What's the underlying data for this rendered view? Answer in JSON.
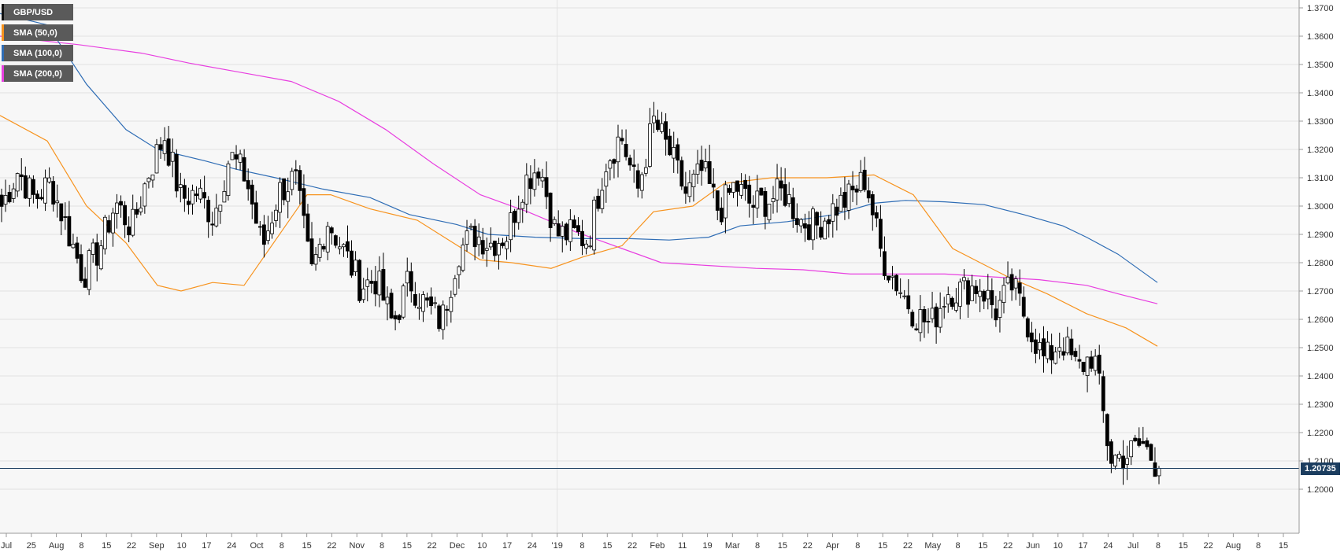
{
  "chart_data": {
    "type": "candlestick",
    "title": "",
    "ylim": [
      1.196,
      1.372
    ],
    "y_ticks": [
      "1.3700",
      "1.3600",
      "1.3500",
      "1.3400",
      "1.3300",
      "1.3200",
      "1.3100",
      "1.3000",
      "1.2900",
      "1.2800",
      "1.2700",
      "1.2600",
      "1.2500",
      "1.2400",
      "1.2300",
      "1.2200",
      "1.2100",
      "1.2000"
    ],
    "x_ticks": [
      "Jul",
      "25",
      "Aug",
      "8",
      "15",
      "22",
      "Sep",
      "10",
      "17",
      "24",
      "Oct",
      "8",
      "15",
      "22",
      "Nov",
      "8",
      "15",
      "22",
      "Dec",
      "10",
      "17",
      "24",
      "'19",
      "8",
      "15",
      "22",
      "Feb",
      "11",
      "19",
      "Mar",
      "8",
      "15",
      "22",
      "Apr",
      "8",
      "15",
      "22",
      "May",
      "8",
      "15",
      "22",
      "Jun",
      "10",
      "17",
      "24",
      "Jul",
      "8",
      "15",
      "22",
      "Aug",
      "8",
      "15"
    ],
    "legend": [
      {
        "label": "GBP/USD",
        "color": "#111111"
      },
      {
        "label": "SMA (50,0)",
        "color": "#f7931e"
      },
      {
        "label": "SMA (100,0)",
        "color": "#2f6db5"
      },
      {
        "label": "SMA (200,0)",
        "color": "#e83fe0"
      }
    ],
    "last_price": "1.20735",
    "last_price_value": 1.20735,
    "ohlc_anchor_closes": [
      1.3,
      1.3125,
      1.3025,
      1.3085,
      1.2925,
      1.2755,
      1.285,
      1.3012,
      1.292,
      1.3115,
      1.325,
      1.3025,
      1.305,
      1.296,
      1.318,
      1.31,
      1.285,
      1.305,
      1.31,
      1.276,
      1.295,
      1.284,
      1.272,
      1.274,
      1.258,
      1.274,
      1.265,
      1.259,
      1.284,
      1.29,
      1.287,
      1.29,
      1.308,
      1.315,
      1.29,
      1.29,
      1.288,
      1.315,
      1.325,
      1.305,
      1.33,
      1.3185,
      1.304,
      1.3125,
      1.298,
      1.3075,
      1.3,
      1.302,
      1.305,
      1.295,
      1.293,
      1.299,
      1.303,
      1.31,
      1.282,
      1.272,
      1.262,
      1.258,
      1.27,
      1.2705,
      1.272,
      1.263,
      1.272,
      1.258,
      1.245,
      1.253,
      1.242,
      1.248,
      1.211,
      1.212,
      1.216,
      1.20735
    ],
    "sma50": [
      [
        0,
        1.332
      ],
      [
        60,
        1.323
      ],
      [
        110,
        1.3
      ],
      [
        160,
        1.287
      ],
      [
        200,
        1.272
      ],
      [
        230,
        1.27
      ],
      [
        270,
        1.273
      ],
      [
        310,
        1.272
      ],
      [
        350,
        1.288
      ],
      [
        390,
        1.304
      ],
      [
        420,
        1.304
      ],
      [
        470,
        1.299
      ],
      [
        530,
        1.295
      ],
      [
        570,
        1.288
      ],
      [
        610,
        1.281
      ],
      [
        650,
        1.28
      ],
      [
        700,
        1.278
      ],
      [
        740,
        1.282
      ],
      [
        790,
        1.286
      ],
      [
        830,
        1.298
      ],
      [
        880,
        1.3
      ],
      [
        920,
        1.308
      ],
      [
        980,
        1.31
      ],
      [
        1050,
        1.31
      ],
      [
        1110,
        1.311
      ],
      [
        1160,
        1.304
      ],
      [
        1210,
        1.285
      ],
      [
        1280,
        1.275
      ],
      [
        1330,
        1.269
      ],
      [
        1380,
        1.262
      ],
      [
        1430,
        1.257
      ],
      [
        1470,
        1.2505
      ]
    ],
    "sma100": [
      [
        0,
        1.368
      ],
      [
        60,
        1.364
      ],
      [
        110,
        1.343
      ],
      [
        160,
        1.327
      ],
      [
        200,
        1.32
      ],
      [
        260,
        1.316
      ],
      [
        300,
        1.313
      ],
      [
        350,
        1.31
      ],
      [
        410,
        1.306
      ],
      [
        470,
        1.303
      ],
      [
        520,
        1.297
      ],
      [
        580,
        1.2935
      ],
      [
        620,
        1.29
      ],
      [
        680,
        1.289
      ],
      [
        740,
        1.2885
      ],
      [
        800,
        1.2885
      ],
      [
        850,
        1.288
      ],
      [
        900,
        1.289
      ],
      [
        940,
        1.293
      ],
      [
        1000,
        1.2945
      ],
      [
        1060,
        1.297
      ],
      [
        1110,
        1.301
      ],
      [
        1150,
        1.302
      ],
      [
        1200,
        1.3015
      ],
      [
        1250,
        1.3005
      ],
      [
        1300,
        1.297
      ],
      [
        1350,
        1.293
      ],
      [
        1380,
        1.289
      ],
      [
        1420,
        1.283
      ],
      [
        1470,
        1.273
      ]
    ],
    "sma200": [
      [
        0,
        1.36
      ],
      [
        100,
        1.357
      ],
      [
        180,
        1.354
      ],
      [
        240,
        1.3505
      ],
      [
        310,
        1.347
      ],
      [
        370,
        1.344
      ],
      [
        430,
        1.337
      ],
      [
        490,
        1.327
      ],
      [
        550,
        1.315
      ],
      [
        610,
        1.304
      ],
      [
        670,
        1.298
      ],
      [
        730,
        1.291
      ],
      [
        790,
        1.285
      ],
      [
        840,
        1.28
      ],
      [
        900,
        1.279
      ],
      [
        960,
        1.278
      ],
      [
        1020,
        1.2775
      ],
      [
        1080,
        1.276
      ],
      [
        1140,
        1.276
      ],
      [
        1200,
        1.276
      ],
      [
        1260,
        1.275
      ],
      [
        1320,
        1.274
      ],
      [
        1380,
        1.272
      ],
      [
        1420,
        1.269
      ],
      [
        1470,
        1.2655
      ]
    ],
    "grid": true,
    "legend_position": "top-left"
  }
}
